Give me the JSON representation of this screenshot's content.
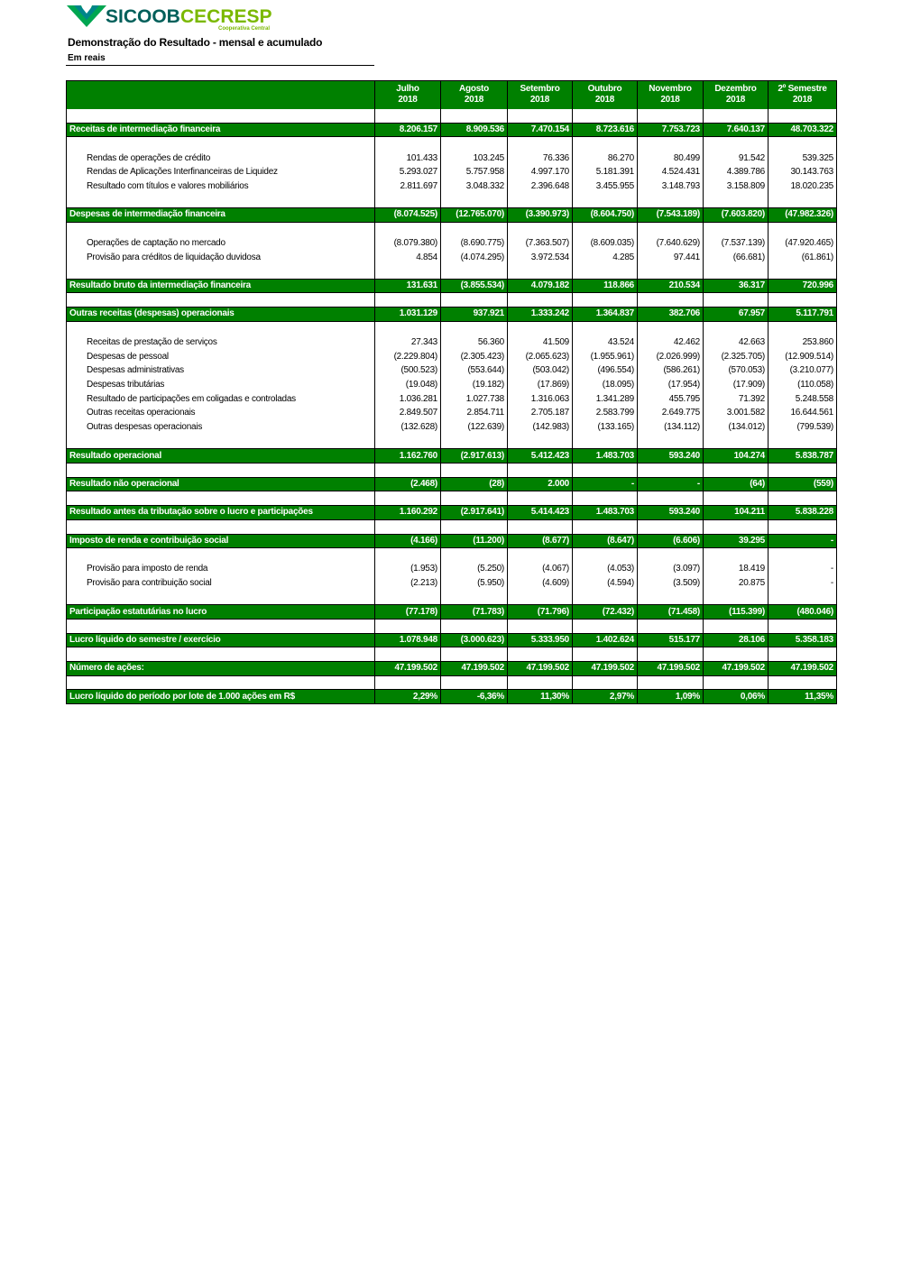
{
  "logo": {
    "brand": "SICOOB",
    "name": "CECRESP",
    "tagline": "Cooperativa Central"
  },
  "header": {
    "title": "Demonstração do Resultado - mensal e acumulado",
    "subtitle": "Em  reais"
  },
  "table": {
    "columns": [
      {
        "month": "Julho",
        "year": "2018"
      },
      {
        "month": "Agosto",
        "year": "2018"
      },
      {
        "month": "Setembro",
        "year": "2018"
      },
      {
        "month": "Outubro",
        "year": "2018"
      },
      {
        "month": "Novembro",
        "year": "2018"
      },
      {
        "month": "Dezembro",
        "year": "2018"
      },
      {
        "month": "2º Semestre",
        "year": "2018"
      }
    ],
    "sections": [
      {
        "label": "Receitas de intermediação financeira",
        "values": [
          "8.206.157",
          "8.909.536",
          "7.470.154",
          "8.723.616",
          "7.753.723",
          "7.640.137",
          "48.703.322"
        ],
        "items": [
          {
            "label": "Rendas de operações de crédito",
            "values": [
              "101.433",
              "103.245",
              "76.336",
              "86.270",
              "80.499",
              "91.542",
              "539.325"
            ]
          },
          {
            "label": "Rendas de Aplicações Interfinanceiras de Liquidez",
            "values": [
              "5.293.027",
              "5.757.958",
              "4.997.170",
              "5.181.391",
              "4.524.431",
              "4.389.786",
              "30.143.763"
            ]
          },
          {
            "label": "Resultado com títulos e valores mobiliários",
            "values": [
              "2.811.697",
              "3.048.332",
              "2.396.648",
              "3.455.955",
              "3.148.793",
              "3.158.809",
              "18.020.235"
            ]
          }
        ]
      },
      {
        "label": "Despesas de intermediação financeira",
        "values": [
          "(8.074.525)",
          "(12.765.070)",
          "(3.390.973)",
          "(8.604.750)",
          "(7.543.189)",
          "(7.603.820)",
          "(47.982.326)"
        ],
        "items": [
          {
            "label": "Operações de captação no mercado",
            "values": [
              "(8.079.380)",
              "(8.690.775)",
              "(7.363.507)",
              "(8.609.035)",
              "(7.640.629)",
              "(7.537.139)",
              "(47.920.465)"
            ]
          },
          {
            "label": "Provisão para créditos de liquidação duvidosa",
            "values": [
              "4.854",
              "(4.074.295)",
              "3.972.534",
              "4.285",
              "97.441",
              "(66.681)",
              "(61.861)"
            ]
          }
        ]
      },
      {
        "label": "Resultado bruto da intermediação financeira",
        "values": [
          "131.631",
          "(3.855.534)",
          "4.079.182",
          "118.866",
          "210.534",
          "36.317",
          "720.996"
        ],
        "items": []
      },
      {
        "label": "Outras receitas (despesas) operacionais",
        "values": [
          "1.031.129",
          "937.921",
          "1.333.242",
          "1.364.837",
          "382.706",
          "67.957",
          "5.117.791"
        ],
        "items": [
          {
            "label": "Receitas de prestação de serviços",
            "values": [
              "27.343",
              "56.360",
              "41.509",
              "43.524",
              "42.462",
              "42.663",
              "253.860"
            ]
          },
          {
            "label": "Despesas de pessoal",
            "values": [
              "(2.229.804)",
              "(2.305.423)",
              "(2.065.623)",
              "(1.955.961)",
              "(2.026.999)",
              "(2.325.705)",
              "(12.909.514)"
            ]
          },
          {
            "label": "Despesas administrativas",
            "values": [
              "(500.523)",
              "(553.644)",
              "(503.042)",
              "(496.554)",
              "(586.261)",
              "(570.053)",
              "(3.210.077)"
            ]
          },
          {
            "label": "Despesas tributárias",
            "values": [
              "(19.048)",
              "(19.182)",
              "(17.869)",
              "(18.095)",
              "(17.954)",
              "(17.909)",
              "(110.058)"
            ]
          },
          {
            "label": "Resultado de participações em coligadas e controladas",
            "values": [
              "1.036.281",
              "1.027.738",
              "1.316.063",
              "1.341.289",
              "455.795",
              "71.392",
              "5.248.558"
            ]
          },
          {
            "label": "Outras receitas operacionais",
            "values": [
              "2.849.507",
              "2.854.711",
              "2.705.187",
              "2.583.799",
              "2.649.775",
              "3.001.582",
              "16.644.561"
            ]
          },
          {
            "label": "Outras despesas operacionais",
            "values": [
              "(132.628)",
              "(122.639)",
              "(142.983)",
              "(133.165)",
              "(134.112)",
              "(134.012)",
              "(799.539)"
            ]
          }
        ]
      },
      {
        "label": "Resultado operacional",
        "values": [
          "1.162.760",
          "(2.917.613)",
          "5.412.423",
          "1.483.703",
          "593.240",
          "104.274",
          "5.838.787"
        ],
        "items": []
      },
      {
        "label": "Resultado não operacional",
        "values": [
          "(2.468)",
          "(28)",
          "2.000",
          "-",
          "-",
          "(64)",
          "(559)"
        ],
        "items": []
      },
      {
        "label": "Resultado antes da tributação sobre o lucro e participações",
        "values": [
          "1.160.292",
          "(2.917.641)",
          "5.414.423",
          "1.483.703",
          "593.240",
          "104.211",
          "5.838.228"
        ],
        "items": []
      },
      {
        "label": "Imposto de renda e contribuição social",
        "values": [
          "(4.166)",
          "(11.200)",
          "(8.677)",
          "(8.647)",
          "(6.606)",
          "39.295",
          "-"
        ],
        "items": [
          {
            "label": "Provisão para imposto de renda",
            "values": [
              "(1.953)",
              "(5.250)",
              "(4.067)",
              "(4.053)",
              "(3.097)",
              "18.419",
              "-"
            ]
          },
          {
            "label": "Provisão para contribuição social",
            "values": [
              "(2.213)",
              "(5.950)",
              "(4.609)",
              "(4.594)",
              "(3.509)",
              "20.875",
              "-"
            ]
          }
        ]
      },
      {
        "label": "Participação estatutárias no lucro",
        "values": [
          "(77.178)",
          "(71.783)",
          "(71.796)",
          "(72.432)",
          "(71.458)",
          "(115.399)",
          "(480.046)"
        ],
        "items": []
      },
      {
        "label": "Lucro líquido do semestre / exercício",
        "values": [
          "1.078.948",
          "(3.000.623)",
          "5.333.950",
          "1.402.624",
          "515.177",
          "28.106",
          "5.358.183"
        ],
        "items": []
      },
      {
        "label": "Número de ações:",
        "values": [
          "47.199.502",
          "47.199.502",
          "47.199.502",
          "47.199.502",
          "47.199.502",
          "47.199.502",
          "47.199.502"
        ],
        "items": []
      },
      {
        "label": "Lucro líquido do período por lote de 1.000 ações em R$",
        "values": [
          "2,29%",
          "-6,36%",
          "11,30%",
          "2,97%",
          "1,09%",
          "0,06%",
          "11,35%"
        ],
        "items": []
      }
    ]
  }
}
